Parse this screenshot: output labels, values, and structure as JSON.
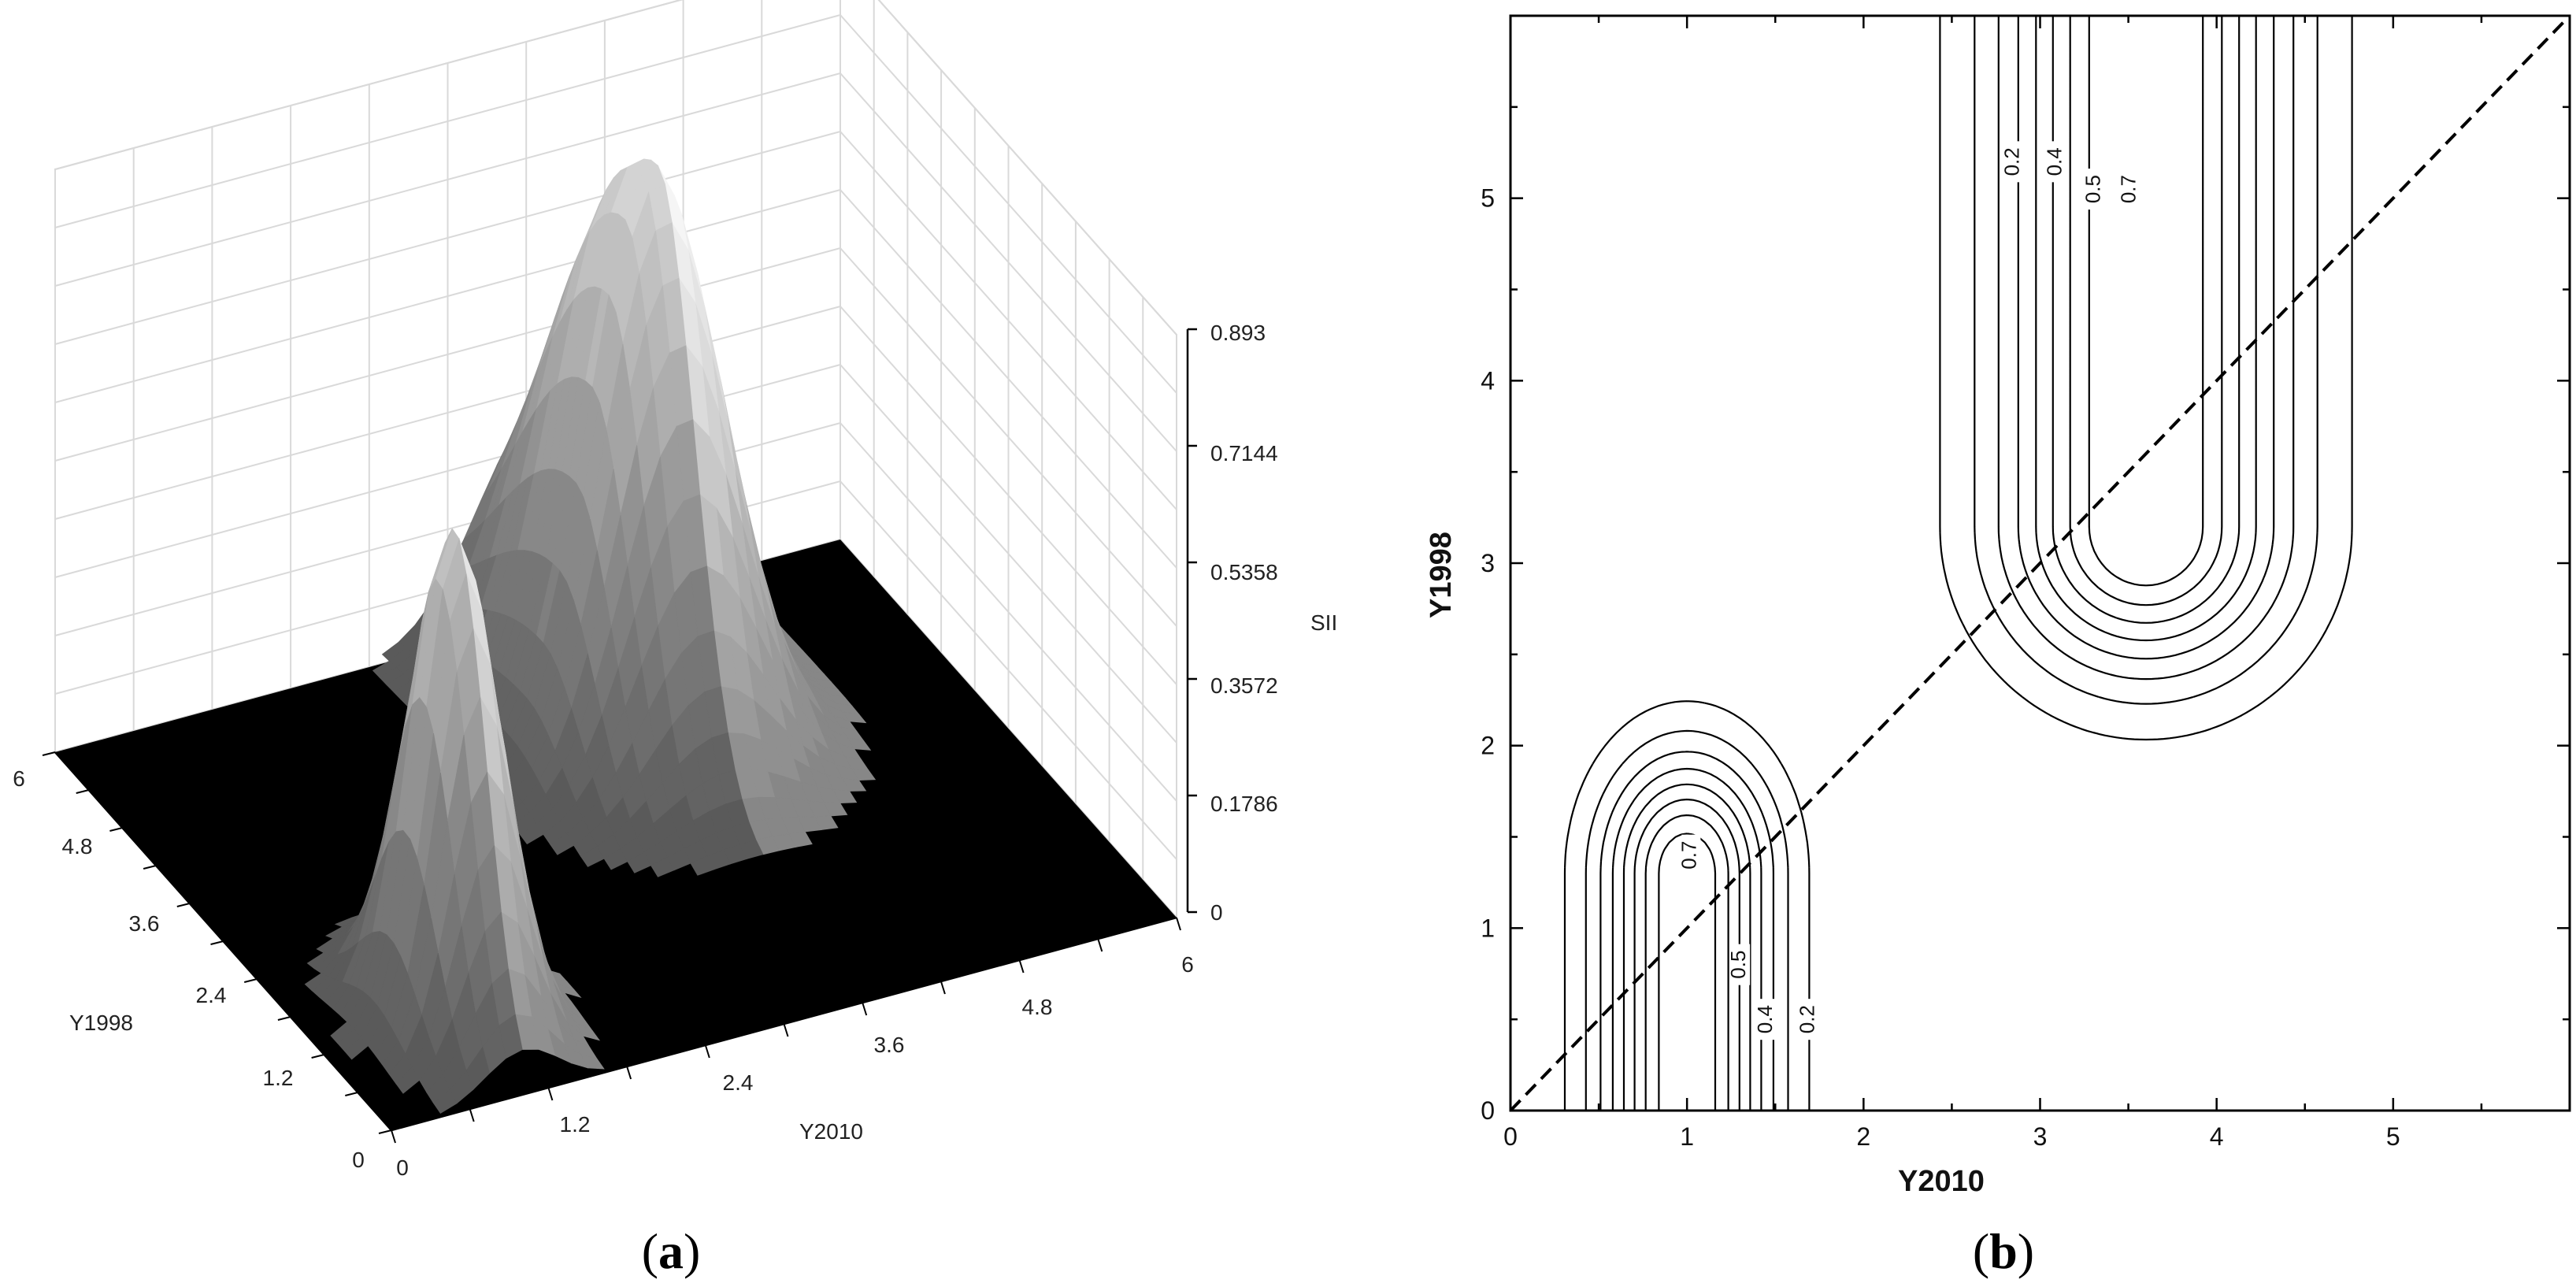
{
  "panels": {
    "a": {
      "label_open": "(",
      "letter": "a",
      "label_close": ")"
    },
    "b": {
      "label_open": "(",
      "letter": "b",
      "label_close": ")"
    }
  },
  "chart_data": [
    {
      "type": "surface3d",
      "panel": "a",
      "xlabel": "Y2010",
      "ylabel": "Y1998",
      "zlabel": "SII",
      "x_ticks": [
        "0",
        "1.2",
        "2.4",
        "3.6",
        "4.8",
        "6"
      ],
      "y_ticks": [
        "0",
        "1.2",
        "2.4",
        "3.6",
        "4.8",
        "6"
      ],
      "z_ticks": [
        "0",
        "0.1786",
        "0.3572",
        "0.5358",
        "0.7144",
        "0.893"
      ],
      "xlim": [
        0,
        6
      ],
      "ylim": [
        0,
        6
      ],
      "zlim": [
        0,
        0.893
      ],
      "peaks": [
        {
          "x": 1.0,
          "y": 1.2,
          "height": 0.75
        },
        {
          "x": 3.7,
          "y": 4.0,
          "height": 0.893
        }
      ],
      "colors": {
        "floor": "#000000",
        "surface": "#b8b8b8",
        "grid": "#d9d9d9"
      }
    },
    {
      "type": "contour",
      "panel": "b",
      "xlabel": "Y2010",
      "ylabel": "Y1998",
      "x_ticks": [
        "0",
        "1",
        "2",
        "3",
        "4",
        "5"
      ],
      "y_ticks": [
        "0",
        "1",
        "2",
        "3",
        "4",
        "5"
      ],
      "xlim": [
        0,
        6
      ],
      "ylim": [
        0,
        6
      ],
      "levels": [
        0.2,
        0.4,
        0.5,
        0.7
      ],
      "contour_labels": [
        {
          "text": "0.2",
          "x": 2.88,
          "y": 5.2
        },
        {
          "text": "0.4",
          "x": 3.12,
          "y": 5.2
        },
        {
          "text": "0.5",
          "x": 3.34,
          "y": 5.05
        },
        {
          "text": "0.7",
          "x": 3.54,
          "y": 5.05
        },
        {
          "text": "0.7",
          "x": 1.05,
          "y": 1.4
        },
        {
          "text": "0.5",
          "x": 1.33,
          "y": 0.8
        },
        {
          "text": "0.4",
          "x": 1.48,
          "y": 0.5
        },
        {
          "text": "0.2",
          "x": 1.72,
          "y": 0.5
        }
      ],
      "reference_line": {
        "style": "dashed",
        "from": [
          0,
          0
        ],
        "to": [
          6,
          6
        ]
      },
      "colors": {
        "line": "#000000"
      }
    }
  ]
}
